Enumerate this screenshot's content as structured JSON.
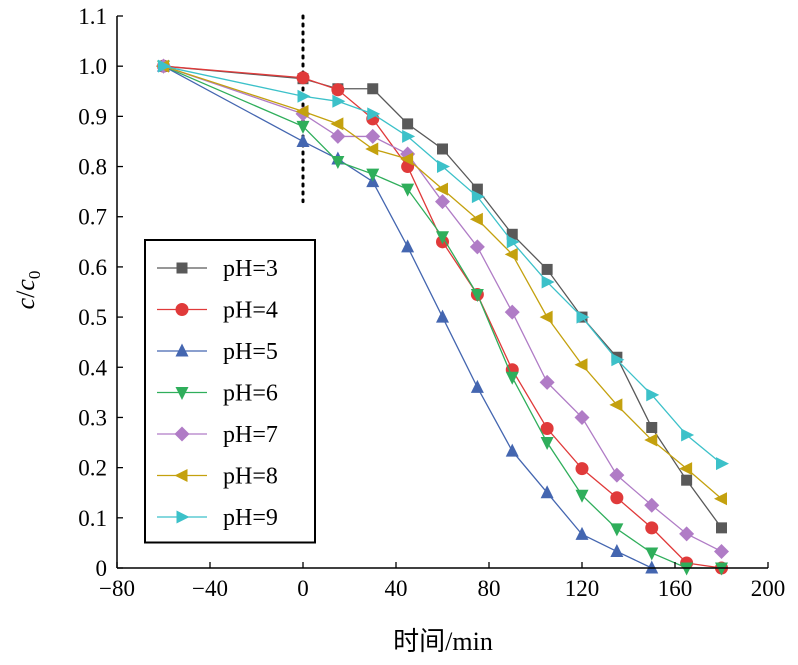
{
  "chart_data": {
    "type": "line",
    "title": "",
    "xlabel": "时间/min",
    "ylabel": "c/c0",
    "ylabel_parts": {
      "c": "c",
      "slash": "/",
      "c0_base": "c",
      "c0_sub": "0"
    },
    "xlim": [
      -80,
      200
    ],
    "ylim": [
      0,
      1.1
    ],
    "xticks": [
      -80,
      -40,
      0,
      40,
      80,
      120,
      160,
      200
    ],
    "xtick_labels": [
      "−80",
      "−40",
      "0",
      "40",
      "80",
      "120",
      "160",
      "200"
    ],
    "yticks": [
      0,
      0.1,
      0.2,
      0.3,
      0.4,
      0.5,
      0.6,
      0.7,
      0.8,
      0.9,
      1.0,
      1.1
    ],
    "ytick_labels": [
      "0",
      "0.1",
      "0.2",
      "0.3",
      "0.4",
      "0.5",
      "0.6",
      "0.7",
      "0.8",
      "0.9",
      "1.0",
      "1.1"
    ],
    "grid": false,
    "legend_position": "left-middle",
    "reference_line": {
      "x": 0,
      "y_from": 0.73,
      "y_to": 1.1,
      "style": "dotted"
    },
    "series": [
      {
        "name": "pH=3",
        "color": "#595959",
        "marker": "square",
        "x": [
          -60,
          0,
          15,
          30,
          45,
          60,
          75,
          90,
          105,
          120,
          135,
          150,
          165,
          180
        ],
        "y": [
          1.0,
          0.975,
          0.955,
          0.955,
          0.885,
          0.835,
          0.755,
          0.665,
          0.595,
          0.5,
          0.42,
          0.28,
          0.175,
          0.08
        ]
      },
      {
        "name": "pH=4",
        "color": "#e03a3a",
        "marker": "circle",
        "x": [
          -60,
          0,
          15,
          30,
          45,
          60,
          75,
          90,
          105,
          120,
          135,
          150,
          165,
          180
        ],
        "y": [
          1.0,
          0.977,
          0.953,
          0.895,
          0.8,
          0.65,
          0.545,
          0.395,
          0.278,
          0.198,
          0.14,
          0.08,
          0.01,
          0.0
        ]
      },
      {
        "name": "pH=5",
        "color": "#4466b0",
        "marker": "triangle-up",
        "x": [
          -60,
          0,
          15,
          30,
          45,
          60,
          75,
          90,
          105,
          120,
          135,
          150
        ],
        "y": [
          1.0,
          0.85,
          0.815,
          0.77,
          0.64,
          0.5,
          0.36,
          0.233,
          0.15,
          0.067,
          0.033,
          0.0
        ]
      },
      {
        "name": "pH=6",
        "color": "#2fae5b",
        "marker": "triangle-down",
        "x": [
          -60,
          0,
          15,
          30,
          45,
          60,
          75,
          90,
          105,
          120,
          135,
          150,
          165,
          180
        ],
        "y": [
          1.0,
          0.88,
          0.81,
          0.785,
          0.755,
          0.66,
          0.545,
          0.38,
          0.25,
          0.145,
          0.078,
          0.03,
          0.0,
          0.0
        ]
      },
      {
        "name": "pH=7",
        "color": "#b07cc6",
        "marker": "diamond",
        "x": [
          -60,
          0,
          15,
          30,
          45,
          60,
          75,
          90,
          105,
          120,
          135,
          150,
          165,
          180
        ],
        "y": [
          1.0,
          0.905,
          0.86,
          0.86,
          0.825,
          0.73,
          0.64,
          0.51,
          0.37,
          0.3,
          0.185,
          0.125,
          0.068,
          0.033
        ]
      },
      {
        "name": "pH=8",
        "color": "#c4a10e",
        "marker": "triangle-left",
        "x": [
          -60,
          0,
          15,
          30,
          45,
          60,
          75,
          90,
          105,
          120,
          135,
          150,
          165,
          180
        ],
        "y": [
          1.0,
          0.91,
          0.885,
          0.835,
          0.815,
          0.755,
          0.695,
          0.625,
          0.5,
          0.405,
          0.325,
          0.255,
          0.198,
          0.138
        ]
      },
      {
        "name": "pH=9",
        "color": "#3cc1c9",
        "marker": "triangle-right",
        "x": [
          -60,
          0,
          15,
          30,
          45,
          60,
          75,
          90,
          105,
          120,
          135,
          150,
          165,
          180
        ],
        "y": [
          1.0,
          0.94,
          0.93,
          0.905,
          0.86,
          0.8,
          0.74,
          0.65,
          0.57,
          0.5,
          0.415,
          0.345,
          0.265,
          0.208
        ]
      }
    ]
  }
}
